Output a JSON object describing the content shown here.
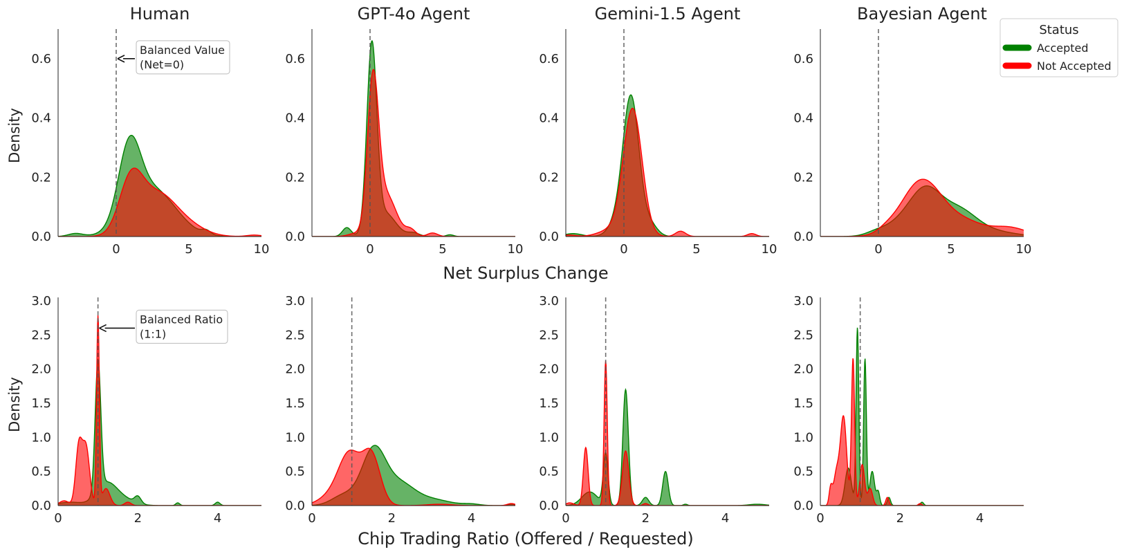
{
  "chart_data": {
    "type": "area",
    "title": "",
    "legend": {
      "title": "Status",
      "placement": "top-right",
      "entries": [
        {
          "label": "Accepted",
          "color": "#008000"
        },
        {
          "label": "Not Accepted",
          "color": "#ff0000"
        }
      ]
    },
    "panel_titles": [
      "Human",
      "GPT-4o Agent",
      "Gemini-1.5 Agent",
      "Bayesian Agent"
    ],
    "rows": [
      {
        "xlabel": "Net Surplus Change",
        "ylabel": "Density",
        "xlim": [
          -4,
          10
        ],
        "ylim": [
          0,
          0.7
        ],
        "xticks": [
          0,
          5,
          10
        ],
        "yticks": [
          0.0,
          0.2,
          0.4,
          0.6
        ],
        "tick_format": 1,
        "reference_x": 0,
        "annotation": {
          "lines": [
            "Balanced Value",
            "(Net=0)"
          ],
          "point": [
            0,
            0.6
          ]
        },
        "panels": [
          {
            "accepted": {
              "components": [
                [
                  -2.8,
                  0.5,
                  0.01
                ],
                [
                  0.9,
                  0.75,
                  0.24
                ],
                [
                  2.5,
                  1.6,
                  0.16
                ],
                [
                  6.2,
                  0.3,
                  0.013
                ]
              ]
            },
            "not_accepted": {
              "components": [
                [
                  1.0,
                  0.8,
                  0.17
                ],
                [
                  2.8,
                  1.3,
                  0.14
                ],
                [
                  5.0,
                  1.2,
                  0.03
                ],
                [
                  9.5,
                  0.5,
                  0.005
                ]
              ]
            }
          },
          {
            "accepted": {
              "components": [
                [
                  0.12,
                  0.34,
                  0.62
                ],
                [
                  1.0,
                  0.75,
                  0.08
                ],
                [
                  -1.6,
                  0.3,
                  0.03
                ],
                [
                  3.0,
                  0.4,
                  0.012
                ],
                [
                  5.5,
                  0.25,
                  0.006
                ]
              ]
            },
            "not_accepted": {
              "components": [
                [
                  0.2,
                  0.38,
                  0.5
                ],
                [
                  1.1,
                  0.7,
                  0.14
                ],
                [
                  2.8,
                  0.35,
                  0.022
                ],
                [
                  4.3,
                  0.35,
                  0.012
                ],
                [
                  -1.0,
                  0.5,
                  0.01
                ]
              ]
            }
          },
          {
            "accepted": {
              "components": [
                [
                  0.5,
                  0.55,
                  0.46
                ],
                [
                  -0.4,
                  0.6,
                  0.05
                ],
                [
                  -3.5,
                  0.6,
                  0.01
                ],
                [
                  1.8,
                  0.5,
                  0.04
                ]
              ]
            },
            "not_accepted": {
              "components": [
                [
                  0.6,
                  0.65,
                  0.43
                ],
                [
                  -1.0,
                  0.8,
                  0.02
                ],
                [
                  3.9,
                  0.35,
                  0.018
                ],
                [
                  8.8,
                  0.3,
                  0.01
                ],
                [
                  -3.8,
                  0.5,
                  0.005
                ]
              ]
            }
          },
          {
            "accepted": {
              "components": [
                [
                  3.3,
                  1.0,
                  0.11
                ],
                [
                  2.0,
                  1.3,
                  0.06
                ],
                [
                  5.4,
                  1.3,
                  0.09
                ],
                [
                  -0.2,
                  0.7,
                  0.01
                ],
                [
                  8.0,
                  1.5,
                  0.015
                ]
              ]
            },
            "not_accepted": {
              "components": [
                [
                  3.0,
                  1.4,
                  0.19
                ],
                [
                  6.0,
                  1.3,
                  0.045
                ],
                [
                  9.0,
                  1.2,
                  0.03
                ],
                [
                  0.5,
                  0.6,
                  0.01
                ]
              ]
            }
          }
        ]
      },
      {
        "xlabel": "Chip Trading Ratio (Offered / Requested)",
        "ylabel": "Density",
        "xlim": [
          0,
          5.1
        ],
        "ylim": [
          0,
          3.05
        ],
        "xticks": [
          0,
          2,
          4
        ],
        "yticks": [
          0.0,
          0.5,
          1.0,
          1.5,
          2.0,
          2.5,
          3.0
        ],
        "tick_format": 1,
        "reference_x": 1,
        "annotation": {
          "lines": [
            "Balanced Ratio",
            "(1:1)"
          ],
          "point": [
            1,
            2.6
          ]
        },
        "panels": [
          {
            "accepted": {
              "components": [
                [
                  1.0,
                  0.07,
                  1.9
                ],
                [
                  1.2,
                  0.25,
                  0.3
                ],
                [
                  1.6,
                  0.3,
                  0.1
                ],
                [
                  2.0,
                  0.08,
                  0.1
                ],
                [
                  3.0,
                  0.05,
                  0.04
                ],
                [
                  4.0,
                  0.06,
                  0.05
                ],
                [
                  0.3,
                  0.3,
                  0.05
                ]
              ]
            },
            "not_accepted": {
              "components": [
                [
                  1.0,
                  0.035,
                  2.75
                ],
                [
                  0.52,
                  0.08,
                  0.85
                ],
                [
                  0.7,
                  0.09,
                  0.85
                ],
                [
                  1.2,
                  0.1,
                  0.25
                ],
                [
                  0.15,
                  0.12,
                  0.07
                ],
                [
                  1.75,
                  0.08,
                  0.05
                ]
              ]
            }
          },
          {
            "accepted": {
              "components": [
                [
                  1.55,
                  0.3,
                  0.82
                ],
                [
                  2.2,
                  0.35,
                  0.28
                ],
                [
                  2.9,
                  0.5,
                  0.1
                ],
                [
                  0.8,
                  0.3,
                  0.15
                ],
                [
                  4.0,
                  0.2,
                  0.02
                ],
                [
                  5.0,
                  0.1,
                  0.02
                ]
              ]
            },
            "not_accepted": {
              "components": [
                [
                  0.95,
                  0.28,
                  0.75
                ],
                [
                  1.5,
                  0.22,
                  0.7
                ],
                [
                  0.45,
                  0.3,
                  0.12
                ],
                [
                  3.2,
                  0.3,
                  0.02
                ],
                [
                  5.0,
                  0.1,
                  0.03
                ]
              ]
            }
          },
          {
            "accepted": {
              "components": [
                [
                  1.5,
                  0.07,
                  1.7
                ],
                [
                  1.0,
                  0.06,
                  0.75
                ],
                [
                  0.6,
                  0.2,
                  0.2
                ],
                [
                  2.0,
                  0.08,
                  0.12
                ],
                [
                  2.5,
                  0.07,
                  0.5
                ],
                [
                  3.0,
                  0.05,
                  0.02
                ],
                [
                  4.8,
                  0.2,
                  0.02
                ]
              ]
            },
            "not_accepted": {
              "components": [
                [
                  1.0,
                  0.04,
                  2.12
                ],
                [
                  0.5,
                  0.06,
                  0.85
                ],
                [
                  1.5,
                  0.08,
                  0.8
                ],
                [
                  0.1,
                  0.1,
                  0.04
                ],
                [
                  2.0,
                  0.06,
                  0.03
                ]
              ]
            }
          },
          {
            "accepted": {
              "components": [
                [
                  0.93,
                  0.035,
                  2.6
                ],
                [
                  1.12,
                  0.035,
                  2.15
                ],
                [
                  0.7,
                  0.08,
                  0.55
                ],
                [
                  1.3,
                  0.06,
                  0.5
                ],
                [
                  1.45,
                  0.04,
                  0.2
                ],
                [
                  1.72,
                  0.04,
                  0.12
                ],
                [
                  2.55,
                  0.04,
                  0.05
                ]
              ]
            },
            "not_accepted": {
              "components": [
                [
                  0.82,
                  0.04,
                  2.15
                ],
                [
                  0.58,
                  0.08,
                  1.3
                ],
                [
                  0.4,
                  0.07,
                  0.45
                ],
                [
                  0.26,
                  0.04,
                  0.25
                ],
                [
                  1.05,
                  0.06,
                  0.6
                ],
                [
                  1.25,
                  0.06,
                  0.25
                ],
                [
                  1.68,
                  0.04,
                  0.12
                ],
                [
                  2.5,
                  0.04,
                  0.03
                ]
              ]
            }
          }
        ]
      }
    ]
  }
}
